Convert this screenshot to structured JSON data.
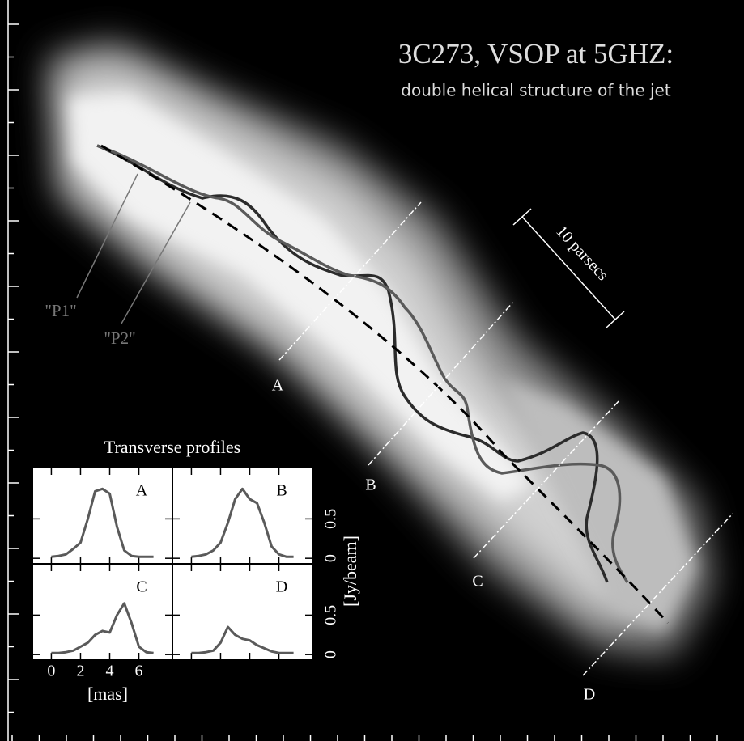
{
  "title": "3C273,   VSOP at 5GHZ:",
  "subtitle": "double helical structure of the jet",
  "scale_label": "10 parsecs",
  "components": [
    {
      "label": "\"P1\""
    },
    {
      "label": "\"P2\""
    }
  ],
  "cuts": [
    {
      "label": "A"
    },
    {
      "label": "B"
    },
    {
      "label": "C"
    },
    {
      "label": "D"
    }
  ],
  "profiles": {
    "type": "line",
    "title": "Transverse profiles",
    "xlabel": "[mas]",
    "ylabel": "[Jy/beam]",
    "x": [
      0,
      0.5,
      1,
      1.5,
      2,
      2.5,
      3,
      3.5,
      4,
      4.5,
      5,
      5.5,
      6,
      6.5,
      7
    ],
    "xlim": [
      -1.3,
      8.3
    ],
    "ylim": [
      -0.07,
      1.15
    ],
    "xticks": [
      0,
      2,
      4,
      6
    ],
    "yticks": [
      0,
      0.5
    ],
    "color": "#5a5a5a",
    "panels": [
      {
        "label": "A",
        "values": [
          0.02,
          0.03,
          0.05,
          0.12,
          0.2,
          0.5,
          0.85,
          0.88,
          0.82,
          0.4,
          0.1,
          0.03,
          0.02,
          0.02,
          0.02
        ]
      },
      {
        "label": "B",
        "values": [
          0.02,
          0.03,
          0.05,
          0.1,
          0.2,
          0.45,
          0.75,
          0.88,
          0.75,
          0.7,
          0.45,
          0.15,
          0.05,
          0.02,
          0.02
        ]
      },
      {
        "label": "C",
        "values": [
          0.02,
          0.02,
          0.03,
          0.05,
          0.1,
          0.15,
          0.25,
          0.3,
          0.28,
          0.5,
          0.65,
          0.4,
          0.1,
          0.03,
          0.02
        ]
      },
      {
        "label": "D",
        "values": [
          0.02,
          0.02,
          0.03,
          0.05,
          0.15,
          0.35,
          0.25,
          0.2,
          0.18,
          0.12,
          0.08,
          0.04,
          0.02,
          0.02,
          0.02
        ]
      }
    ]
  }
}
